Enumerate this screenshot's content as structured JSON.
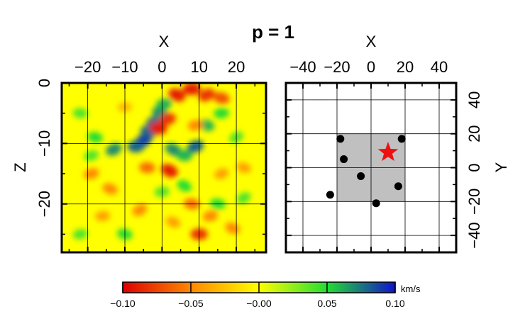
{
  "title": "p = 1",
  "chart_data": [
    {
      "type": "heatmap",
      "name": "vertical-section",
      "xlabel": "X",
      "ylabel": "Z",
      "xlim": [
        -27,
        28
      ],
      "ylim": [
        -28,
        0
      ],
      "xticks": [
        -20,
        -10,
        0,
        10,
        20
      ],
      "xtick_labels": [
        "−20",
        "−10",
        "0",
        "10",
        "20"
      ],
      "yticks": [
        0,
        -10,
        -20
      ],
      "ytick_labels": [
        "0",
        "−10",
        "−20"
      ],
      "grid": true,
      "background_value": 0.0,
      "anomalies": [
        {
          "x": -5.0,
          "z": -9.5,
          "v": 0.09
        },
        {
          "x": -3.5,
          "z": -8.0,
          "v": 0.08
        },
        {
          "x": -2.0,
          "z": -6.5,
          "v": 0.08
        },
        {
          "x": -0.5,
          "z": -5.0,
          "v": 0.07
        },
        {
          "x": -7.0,
          "z": -10.5,
          "v": 0.08
        },
        {
          "x": -13.0,
          "z": -11.0,
          "v": 0.07
        },
        {
          "x": -18.0,
          "z": -9.0,
          "v": 0.05
        },
        {
          "x": 0.5,
          "z": -3.5,
          "v": 0.06
        },
        {
          "x": 3.0,
          "z": -11.0,
          "v": 0.07
        },
        {
          "x": 6.0,
          "z": -12.0,
          "v": 0.06
        },
        {
          "x": 9.0,
          "z": -10.5,
          "v": 0.08
        },
        {
          "x": 12.0,
          "z": -7.0,
          "v": 0.06
        },
        {
          "x": 16.0,
          "z": -5.0,
          "v": 0.05
        },
        {
          "x": 20.0,
          "z": -9.0,
          "v": 0.04
        },
        {
          "x": -1.0,
          "z": -7.5,
          "v": -0.09
        },
        {
          "x": 1.5,
          "z": -6.0,
          "v": -0.08
        },
        {
          "x": 4.0,
          "z": -2.0,
          "v": -0.09
        },
        {
          "x": 8.0,
          "z": -1.0,
          "v": -0.09
        },
        {
          "x": 12.0,
          "z": -2.0,
          "v": -0.08
        },
        {
          "x": 16.0,
          "z": -2.5,
          "v": -0.07
        },
        {
          "x": 9.0,
          "z": -7.0,
          "v": -0.05
        },
        {
          "x": 2.0,
          "z": -14.5,
          "v": -0.09
        },
        {
          "x": -4.0,
          "z": -14.0,
          "v": -0.06
        },
        {
          "x": -19.0,
          "z": -15.0,
          "v": -0.05
        },
        {
          "x": -14.0,
          "z": -17.5,
          "v": -0.05
        },
        {
          "x": -16.0,
          "z": -22.0,
          "v": -0.04
        },
        {
          "x": -6.0,
          "z": -21.0,
          "v": -0.05
        },
        {
          "x": 8.0,
          "z": -20.0,
          "v": -0.06
        },
        {
          "x": 13.0,
          "z": -22.0,
          "v": -0.05
        },
        {
          "x": 19.0,
          "z": -24.0,
          "v": -0.05
        },
        {
          "x": 10.0,
          "z": -25.0,
          "v": -0.08
        },
        {
          "x": 16.0,
          "z": -15.0,
          "v": -0.04
        },
        {
          "x": -10.0,
          "z": -25.0,
          "v": 0.05
        },
        {
          "x": 0.0,
          "z": -18.0,
          "v": 0.04
        },
        {
          "x": 6.0,
          "z": -17.0,
          "v": 0.05
        },
        {
          "x": -22.0,
          "z": -5.0,
          "v": 0.04
        },
        {
          "x": -19.0,
          "z": -12.0,
          "v": 0.04
        },
        {
          "x": 22.0,
          "z": -14.0,
          "v": -0.04
        },
        {
          "x": -10.0,
          "z": -4.0,
          "v": -0.03
        },
        {
          "x": 22.0,
          "z": -19.0,
          "v": 0.04
        },
        {
          "x": 15.0,
          "z": -20.0,
          "v": 0.05
        },
        {
          "x": -22.0,
          "z": -25.0,
          "v": 0.04
        },
        {
          "x": 3.0,
          "z": -23.0,
          "v": -0.04
        }
      ]
    },
    {
      "type": "scatter",
      "name": "map-view",
      "xlabel": "X",
      "ylabel": "Y",
      "xlim": [
        -50,
        50
      ],
      "ylim": [
        -50,
        50
      ],
      "xticks": [
        -40,
        -20,
        0,
        20,
        40
      ],
      "xtick_labels": [
        "−40",
        "−20",
        "0",
        "20",
        "40"
      ],
      "yticks": [
        40,
        20,
        0,
        -20,
        -40
      ],
      "ytick_labels": [
        "40",
        "20",
        "0",
        "−20",
        "−40"
      ],
      "grid": true,
      "region": {
        "x": [
          -20,
          20
        ],
        "y": [
          -20,
          20
        ]
      },
      "stations": [
        {
          "x": -18,
          "y": 17
        },
        {
          "x": -16,
          "y": 5
        },
        {
          "x": -6,
          "y": -5
        },
        {
          "x": -24,
          "y": -16
        },
        {
          "x": 18,
          "y": 17
        },
        {
          "x": 16,
          "y": -11
        },
        {
          "x": 3,
          "y": -21
        }
      ],
      "source": {
        "x": 10,
        "y": 9
      },
      "source_color": "#ee1111"
    }
  ],
  "colorbar": {
    "min": -0.1,
    "max": 0.1,
    "unit": "km/s",
    "ticks": [
      -0.1,
      -0.05,
      0.0,
      0.05,
      0.1
    ],
    "tick_labels": [
      "−0.10",
      "−0.05",
      "−0.00",
      "0.05",
      "0.10"
    ],
    "colors": [
      "#dd0000",
      "#ff8800",
      "#ffff00",
      "#22dd33",
      "#1111cc"
    ]
  }
}
